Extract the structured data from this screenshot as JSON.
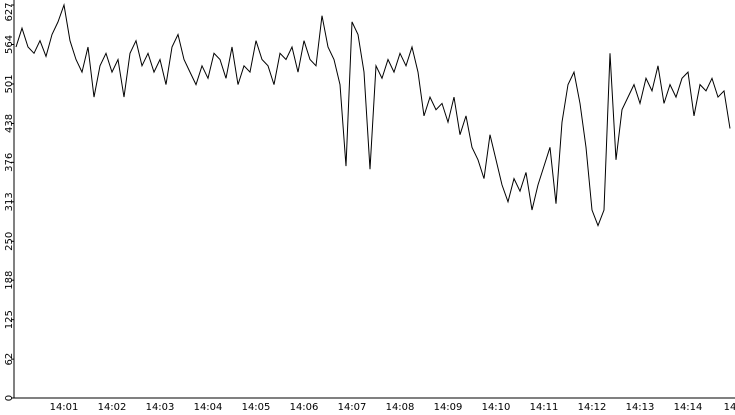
{
  "chart_data": {
    "type": "line",
    "categories": [
      null,
      null,
      null,
      null,
      null,
      null,
      null,
      null,
      "14:01",
      null,
      null,
      null,
      null,
      null,
      null,
      null,
      "14:02",
      null,
      null,
      null,
      null,
      null,
      null,
      null,
      "14:03",
      null,
      null,
      null,
      null,
      null,
      null,
      null,
      "14:04",
      null,
      null,
      null,
      null,
      null,
      null,
      null,
      "14:05",
      null,
      null,
      null,
      null,
      null,
      null,
      null,
      "14:06",
      null,
      null,
      null,
      null,
      null,
      null,
      null,
      "14:07",
      null,
      null,
      null,
      null,
      null,
      null,
      null,
      "14:08",
      null,
      null,
      null,
      null,
      null,
      null,
      null,
      "14:09",
      null,
      null,
      null,
      null,
      null,
      null,
      null,
      "14:10",
      null,
      null,
      null,
      null,
      null,
      null,
      null,
      "14:11",
      null,
      null,
      null,
      null,
      null,
      null,
      null,
      "14:12",
      null,
      null,
      null,
      null,
      null,
      null,
      null,
      "14:13",
      null,
      null,
      null,
      null,
      null,
      null,
      null,
      "14:14",
      null,
      null,
      null,
      null,
      null,
      null,
      "14"
    ],
    "values": [
      560,
      590,
      560,
      550,
      570,
      545,
      580,
      600,
      627,
      570,
      540,
      520,
      560,
      480,
      530,
      550,
      520,
      540,
      480,
      550,
      570,
      530,
      550,
      520,
      540,
      500,
      560,
      580,
      540,
      520,
      500,
      530,
      510,
      550,
      540,
      510,
      560,
      500,
      530,
      520,
      570,
      540,
      530,
      500,
      550,
      540,
      560,
      520,
      570,
      540,
      530,
      610,
      560,
      540,
      500,
      370,
      600,
      580,
      520,
      365,
      530,
      510,
      540,
      520,
      550,
      530,
      560,
      520,
      450,
      480,
      460,
      470,
      440,
      480,
      420,
      450,
      400,
      380,
      350,
      420,
      380,
      340,
      313,
      350,
      330,
      360,
      300,
      340,
      370,
      400,
      310,
      440,
      500,
      520,
      470,
      400,
      300,
      275,
      300,
      550,
      380,
      460,
      480,
      500,
      470,
      510,
      490,
      530,
      470,
      500,
      480,
      510,
      520,
      450,
      500,
      490,
      510,
      480,
      490,
      430
    ],
    "color": "#000000",
    "ylim": [
      0,
      627
    ],
    "yticks": [
      0,
      62,
      125,
      188,
      250,
      313,
      376,
      438,
      501,
      564,
      627
    ]
  }
}
